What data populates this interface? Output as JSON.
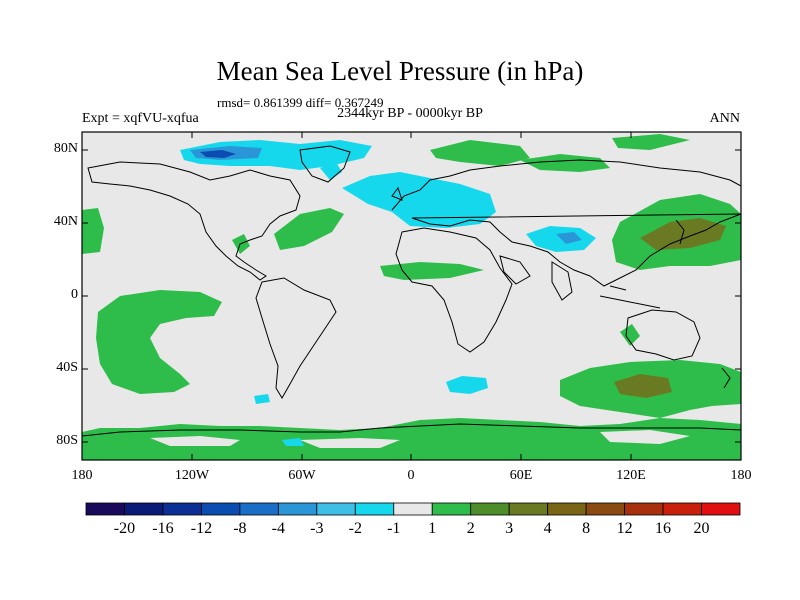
{
  "title": "Mean Sea Level Pressure (in hPa)",
  "stats": "rmsd= 0.861399 diff= 0.367249",
  "subtitle": "2344kyr BP - 0000kyr BP",
  "experiment": "Expt = xqfVU-xqfua",
  "season": "ANN",
  "lat_labels": [
    "80N",
    "40N",
    "0",
    "40S",
    "80S"
  ],
  "lon_labels": [
    "180",
    "120W",
    "60W",
    "0",
    "60E",
    "120E",
    "180"
  ],
  "colorbar": {
    "labels": [
      "-20",
      "-16",
      "-12",
      "-8",
      "-4",
      "-3",
      "-2",
      "-1",
      "1",
      "2",
      "3",
      "4",
      "8",
      "12",
      "16",
      "20"
    ],
    "colors": [
      "#1a0a5c",
      "#0a1a78",
      "#0c2f96",
      "#0a4cb0",
      "#1a6ec8",
      "#2a96d8",
      "#3ec0e6",
      "#16d8ec",
      "#e8e8e8",
      "#2ebd4a",
      "#4e8e2a",
      "#6a7a22",
      "#7a6416",
      "#8a4a10",
      "#a8300c",
      "#c8200a",
      "#e01010"
    ]
  },
  "colors": {
    "background": "#e8e8e8",
    "positive": "#2ebd4a",
    "strong_positive": "#6a7a22",
    "negative": "#16d8ec",
    "strong_negative": "#2a96d8",
    "deep_negative": "#0a4cb0"
  }
}
